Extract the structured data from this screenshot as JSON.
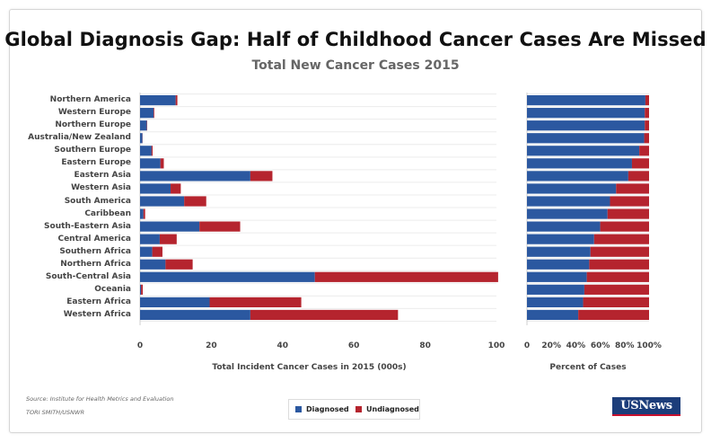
{
  "title": "Global Diagnosis Gap: Half of Childhood Cancer Cases Are Missed",
  "subtitle": "Total New Cancer Cases 2015",
  "source": "Source: Institute for Health Metrics and Evaluation",
  "credit": "TORI SMITH/USNWR",
  "logo": {
    "text": "USNews"
  },
  "legend": {
    "diagnosed": "Diagnosed",
    "undiagnosed": "Undiagnosed"
  },
  "colors": {
    "diagnosed": "#2b58a0",
    "undiagnosed": "#b5242e"
  },
  "chart_data": [
    {
      "type": "bar",
      "orientation": "horizontal",
      "stacked": true,
      "xlabel": "Total Incident Cancer Cases in 2015 (000s)",
      "xlim": [
        0,
        105
      ],
      "xticks": [
        0,
        20,
        40,
        60,
        80,
        100
      ],
      "grid": true,
      "categories": [
        "Northern America",
        "Western Europe",
        "Northern Europe",
        "Australia/New Zealand",
        "Southern Europe",
        "Eastern Europe",
        "Eastern Asia",
        "Western Asia",
        "South America",
        "Caribbean",
        "South-Eastern Asia",
        "Central America",
        "Southern Africa",
        "Northern Africa",
        "South-Central Asia",
        "Oceania",
        "Eastern Africa",
        "Western Africa"
      ],
      "series": [
        {
          "name": "Diagnosed",
          "values": [
            10.5,
            4,
            2,
            0.7,
            3.4,
            6,
            32.5,
            9,
            13,
            1,
            17.5,
            5.8,
            3.6,
            7.5,
            51.5,
            0.3,
            20.5,
            32.5
          ]
        },
        {
          "name": "Undiagnosed",
          "values": [
            0.5,
            0.2,
            0.1,
            0.05,
            0.3,
            1,
            6.5,
            3,
            6.5,
            0.5,
            12,
            5,
            3,
            8,
            54,
            0.5,
            27,
            43.5
          ]
        }
      ]
    },
    {
      "type": "bar",
      "orientation": "horizontal",
      "stacked": true,
      "xlabel": "Percent of Cases",
      "xlim": [
        0,
        100
      ],
      "xticks": [
        "0",
        "20%",
        "40%",
        "60%",
        "80%",
        "100%"
      ],
      "grid": true,
      "categories": [
        "Northern America",
        "Western Europe",
        "Northern Europe",
        "Australia/New Zealand",
        "Southern Europe",
        "Eastern Europe",
        "Eastern Asia",
        "Western Asia",
        "South America",
        "Caribbean",
        "South-Eastern Asia",
        "Central America",
        "Southern Africa",
        "Northern Africa",
        "South-Central Asia",
        "Oceania",
        "Eastern Africa",
        "Western Africa"
      ],
      "series": [
        {
          "name": "Diagnosed",
          "values": [
            97,
            96.5,
            96.5,
            96,
            92,
            86,
            83,
            73,
            68,
            66,
            60,
            55,
            52,
            51,
            49,
            47,
            46,
            42
          ]
        },
        {
          "name": "Undiagnosed",
          "values": [
            3,
            3.5,
            3.5,
            4,
            8,
            14,
            17,
            27,
            32,
            34,
            40,
            45,
            48,
            49,
            51,
            53,
            54,
            58
          ]
        }
      ]
    }
  ]
}
